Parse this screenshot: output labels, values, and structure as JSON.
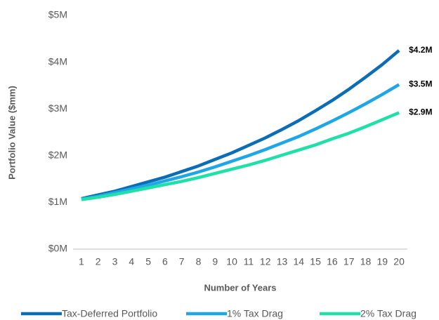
{
  "chart_data": {
    "type": "line",
    "x_label": "Number of Years",
    "y_label": "Portfolio Value ($mm)",
    "categories": [
      1,
      2,
      3,
      4,
      5,
      6,
      7,
      8,
      9,
      10,
      11,
      12,
      13,
      14,
      15,
      16,
      17,
      18,
      19,
      20
    ],
    "series": [
      {
        "name": "Tax-Deferred Portfolio",
        "color": "#0b6db5",
        "values": [
          1.08,
          1.16,
          1.24,
          1.34,
          1.44,
          1.54,
          1.66,
          1.78,
          1.92,
          2.06,
          2.22,
          2.38,
          2.56,
          2.75,
          2.96,
          3.18,
          3.42,
          3.68,
          3.95,
          4.25
        ],
        "end_label": "$4.2M"
      },
      {
        "name": "1% Tax Drag",
        "color": "#1ea6e6",
        "values": [
          1.07,
          1.13,
          1.21,
          1.29,
          1.37,
          1.46,
          1.55,
          1.65,
          1.76,
          1.88,
          2.0,
          2.13,
          2.27,
          2.41,
          2.57,
          2.74,
          2.92,
          3.11,
          3.31,
          3.52
        ],
        "end_label": "$3.5M"
      },
      {
        "name": "2% Tax Drag",
        "color": "#1fe0a8",
        "values": [
          1.06,
          1.11,
          1.17,
          1.24,
          1.31,
          1.38,
          1.45,
          1.53,
          1.62,
          1.71,
          1.8,
          1.9,
          2.01,
          2.12,
          2.23,
          2.36,
          2.48,
          2.62,
          2.77,
          2.92
        ],
        "end_label": "$2.9M"
      }
    ],
    "ylim": [
      0,
      5
    ],
    "yticks": [
      {
        "value": 0,
        "label": "$0M"
      },
      {
        "value": 1,
        "label": "$1M"
      },
      {
        "value": 2,
        "label": "$2M"
      },
      {
        "value": 3,
        "label": "$3M"
      },
      {
        "value": 4,
        "label": "$4M"
      },
      {
        "value": 5,
        "label": "$5M"
      }
    ],
    "grid": false,
    "legend": "bottom"
  }
}
